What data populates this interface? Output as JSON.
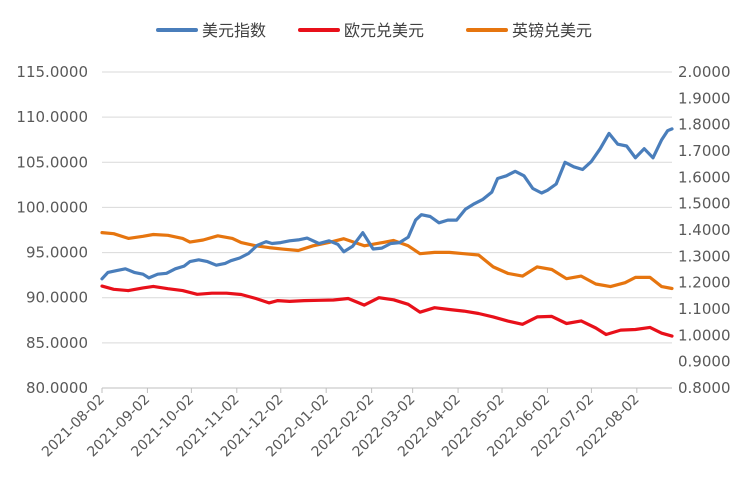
{
  "chart_data": {
    "type": "line",
    "title": "",
    "xlabel": "",
    "ylabel": "",
    "legend_position": "top",
    "grid": true,
    "x_tick_labels": [
      "2021-08-02",
      "2021-09-02",
      "2021-10-02",
      "2021-11-02",
      "2021-12-02",
      "2022-01-02",
      "2022-02-02",
      "2022-03-02",
      "2022-04-02",
      "2022-05-02",
      "2022-06-02",
      "2022-07-02",
      "2022-08-02"
    ],
    "x_range": [
      "2021-08-02",
      "2022-08-26"
    ],
    "left_axis": {
      "range": [
        80,
        115
      ],
      "tick_labels": [
        "80.0000",
        "85.0000",
        "90.0000",
        "95.0000",
        "100.0000",
        "105.0000",
        "110.0000",
        "115.0000"
      ]
    },
    "right_axis": {
      "range": [
        0.8,
        2.0
      ],
      "tick_labels": [
        "0.8000",
        "0.9000",
        "1.0000",
        "1.1000",
        "1.2000",
        "1.3000",
        "1.4000",
        "1.5000",
        "1.6000",
        "1.7000",
        "1.8000",
        "1.9000",
        "2.0000"
      ]
    },
    "series": [
      {
        "name": "美元指数",
        "axis": "left",
        "color": "#4a7ebb",
        "points": [
          [
            "2021-08-02",
            92.1
          ],
          [
            "2021-08-06",
            92.8
          ],
          [
            "2021-08-12",
            93.0
          ],
          [
            "2021-08-18",
            93.2
          ],
          [
            "2021-08-24",
            92.8
          ],
          [
            "2021-08-30",
            92.6
          ],
          [
            "2021-09-03",
            92.2
          ],
          [
            "2021-09-09",
            92.6
          ],
          [
            "2021-09-15",
            92.7
          ],
          [
            "2021-09-21",
            93.2
          ],
          [
            "2021-09-27",
            93.5
          ],
          [
            "2021-10-01",
            94.0
          ],
          [
            "2021-10-07",
            94.2
          ],
          [
            "2021-10-13",
            94.0
          ],
          [
            "2021-10-19",
            93.6
          ],
          [
            "2021-10-25",
            93.8
          ],
          [
            "2021-10-29",
            94.1
          ],
          [
            "2021-11-04",
            94.4
          ],
          [
            "2021-11-10",
            94.9
          ],
          [
            "2021-11-16",
            95.8
          ],
          [
            "2021-11-22",
            96.2
          ],
          [
            "2021-11-26",
            96.0
          ],
          [
            "2021-12-02",
            96.1
          ],
          [
            "2021-12-08",
            96.3
          ],
          [
            "2021-12-14",
            96.4
          ],
          [
            "2021-12-20",
            96.6
          ],
          [
            "2021-12-28",
            96.0
          ],
          [
            "2022-01-04",
            96.3
          ],
          [
            "2022-01-10",
            95.9
          ],
          [
            "2022-01-14",
            95.1
          ],
          [
            "2022-01-20",
            95.7
          ],
          [
            "2022-01-27",
            97.2
          ],
          [
            "2022-02-03",
            95.4
          ],
          [
            "2022-02-09",
            95.5
          ],
          [
            "2022-02-15",
            96.0
          ],
          [
            "2022-02-21",
            96.1
          ],
          [
            "2022-02-27",
            96.7
          ],
          [
            "2022-03-04",
            98.6
          ],
          [
            "2022-03-08",
            99.2
          ],
          [
            "2022-03-14",
            99.0
          ],
          [
            "2022-03-20",
            98.3
          ],
          [
            "2022-03-26",
            98.6
          ],
          [
            "2022-04-01",
            98.6
          ],
          [
            "2022-04-07",
            99.8
          ],
          [
            "2022-04-13",
            100.4
          ],
          [
            "2022-04-19",
            100.9
          ],
          [
            "2022-04-25",
            101.7
          ],
          [
            "2022-04-29",
            103.2
          ],
          [
            "2022-05-05",
            103.5
          ],
          [
            "2022-05-11",
            104.0
          ],
          [
            "2022-05-17",
            103.5
          ],
          [
            "2022-05-23",
            102.1
          ],
          [
            "2022-05-29",
            101.6
          ],
          [
            "2022-06-02",
            101.9
          ],
          [
            "2022-06-08",
            102.6
          ],
          [
            "2022-06-14",
            105.0
          ],
          [
            "2022-06-20",
            104.5
          ],
          [
            "2022-06-26",
            104.2
          ],
          [
            "2022-07-02",
            105.1
          ],
          [
            "2022-07-08",
            106.5
          ],
          [
            "2022-07-14",
            108.2
          ],
          [
            "2022-07-20",
            107.0
          ],
          [
            "2022-07-26",
            106.8
          ],
          [
            "2022-08-01",
            105.5
          ],
          [
            "2022-08-07",
            106.5
          ],
          [
            "2022-08-13",
            105.5
          ],
          [
            "2022-08-19",
            107.5
          ],
          [
            "2022-08-23",
            108.5
          ],
          [
            "2022-08-26",
            108.7
          ]
        ]
      },
      {
        "name": "欧元兑美元",
        "axis": "right",
        "color": "#e8101a",
        "points": [
          [
            "2021-08-02",
            1.187
          ],
          [
            "2021-08-10",
            1.175
          ],
          [
            "2021-08-20",
            1.17
          ],
          [
            "2021-08-30",
            1.18
          ],
          [
            "2021-09-06",
            1.186
          ],
          [
            "2021-09-16",
            1.177
          ],
          [
            "2021-09-26",
            1.17
          ],
          [
            "2021-10-06",
            1.156
          ],
          [
            "2021-10-16",
            1.16
          ],
          [
            "2021-10-26",
            1.16
          ],
          [
            "2021-11-05",
            1.155
          ],
          [
            "2021-11-15",
            1.14
          ],
          [
            "2021-11-24",
            1.123
          ],
          [
            "2021-11-30",
            1.132
          ],
          [
            "2021-12-08",
            1.129
          ],
          [
            "2021-12-18",
            1.132
          ],
          [
            "2021-12-28",
            1.133
          ],
          [
            "2022-01-07",
            1.134
          ],
          [
            "2022-01-17",
            1.14
          ],
          [
            "2022-01-28",
            1.115
          ],
          [
            "2022-02-07",
            1.143
          ],
          [
            "2022-02-17",
            1.135
          ],
          [
            "2022-02-27",
            1.118
          ],
          [
            "2022-03-07",
            1.088
          ],
          [
            "2022-03-17",
            1.105
          ],
          [
            "2022-03-27",
            1.098
          ],
          [
            "2022-04-06",
            1.092
          ],
          [
            "2022-04-16",
            1.083
          ],
          [
            "2022-04-26",
            1.07
          ],
          [
            "2022-05-06",
            1.054
          ],
          [
            "2022-05-16",
            1.042
          ],
          [
            "2022-05-26",
            1.07
          ],
          [
            "2022-06-05",
            1.072
          ],
          [
            "2022-06-15",
            1.045
          ],
          [
            "2022-06-25",
            1.055
          ],
          [
            "2022-07-05",
            1.028
          ],
          [
            "2022-07-12",
            1.003
          ],
          [
            "2022-07-22",
            1.02
          ],
          [
            "2022-08-01",
            1.022
          ],
          [
            "2022-08-11",
            1.03
          ],
          [
            "2022-08-19",
            1.008
          ],
          [
            "2022-08-26",
            0.997
          ]
        ]
      },
      {
        "name": "英镑兑美元",
        "axis": "right",
        "color": "#e6750f",
        "points": [
          [
            "2021-08-02",
            1.39
          ],
          [
            "2021-08-10",
            1.386
          ],
          [
            "2021-08-20",
            1.368
          ],
          [
            "2021-08-30",
            1.376
          ],
          [
            "2021-09-06",
            1.383
          ],
          [
            "2021-09-16",
            1.38
          ],
          [
            "2021-09-26",
            1.368
          ],
          [
            "2021-10-01",
            1.354
          ],
          [
            "2021-10-10",
            1.362
          ],
          [
            "2021-10-20",
            1.378
          ],
          [
            "2021-10-30",
            1.368
          ],
          [
            "2021-11-05",
            1.352
          ],
          [
            "2021-11-15",
            1.34
          ],
          [
            "2021-11-24",
            1.333
          ],
          [
            "2021-12-04",
            1.327
          ],
          [
            "2021-12-14",
            1.322
          ],
          [
            "2021-12-24",
            1.34
          ],
          [
            "2022-01-04",
            1.353
          ],
          [
            "2022-01-14",
            1.367
          ],
          [
            "2022-01-28",
            1.34
          ],
          [
            "2022-02-07",
            1.35
          ],
          [
            "2022-02-17",
            1.36
          ],
          [
            "2022-02-27",
            1.34
          ],
          [
            "2022-03-07",
            1.31
          ],
          [
            "2022-03-17",
            1.315
          ],
          [
            "2022-03-27",
            1.315
          ],
          [
            "2022-04-06",
            1.31
          ],
          [
            "2022-04-16",
            1.305
          ],
          [
            "2022-04-26",
            1.26
          ],
          [
            "2022-05-06",
            1.235
          ],
          [
            "2022-05-16",
            1.225
          ],
          [
            "2022-05-26",
            1.26
          ],
          [
            "2022-06-05",
            1.25
          ],
          [
            "2022-06-15",
            1.215
          ],
          [
            "2022-06-25",
            1.225
          ],
          [
            "2022-07-05",
            1.195
          ],
          [
            "2022-07-15",
            1.185
          ],
          [
            "2022-07-25",
            1.2
          ],
          [
            "2022-08-01",
            1.22
          ],
          [
            "2022-08-11",
            1.22
          ],
          [
            "2022-08-19",
            1.185
          ],
          [
            "2022-08-26",
            1.178
          ]
        ]
      }
    ]
  }
}
